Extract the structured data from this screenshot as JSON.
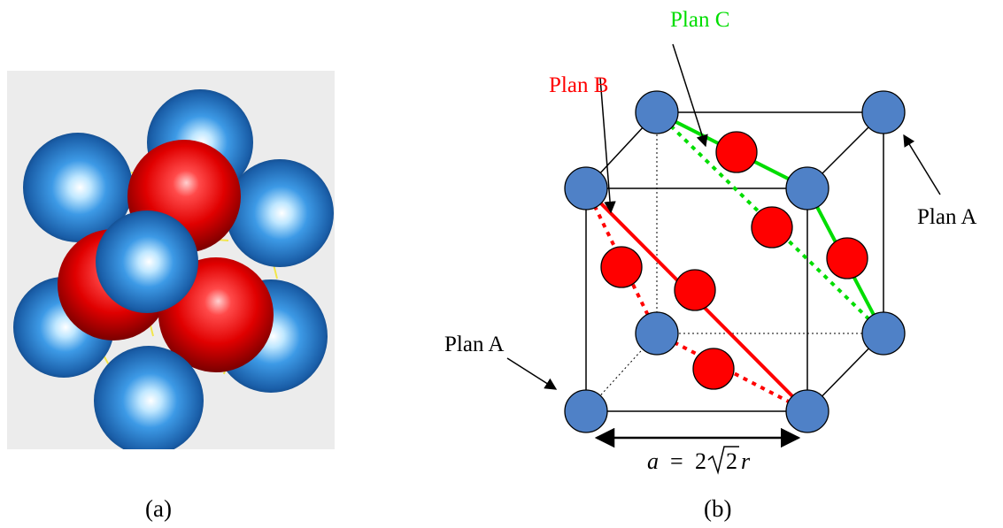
{
  "captions": {
    "a": "(a)",
    "b": "(b)"
  },
  "labels": {
    "plan_a_right": "Plan A",
    "plan_a_left": "Plan A",
    "plan_b": "Plan B",
    "plan_c": "Plan C"
  },
  "formula": {
    "lhs": "a",
    "eq": "=",
    "coef": "2",
    "radicand": "2",
    "var": "r"
  },
  "colors": {
    "blue_atom": "#4f81c7",
    "red_atom": "#ff0000",
    "plan_b": "#ff0000",
    "plan_c": "#00dd00",
    "panel_bg": "#ececec"
  }
}
